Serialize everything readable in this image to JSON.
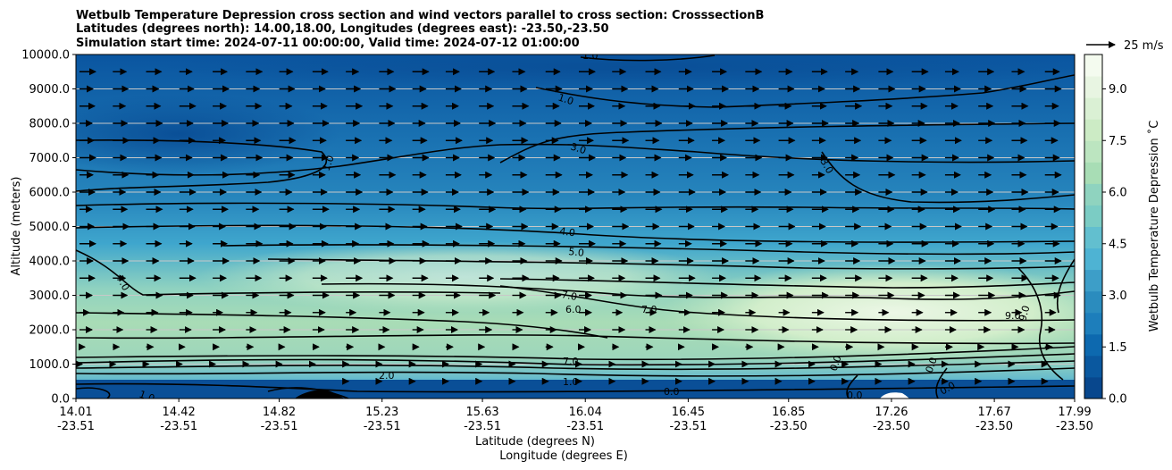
{
  "chart_data": {
    "type": "contour",
    "title_lines": [
      "Wetbulb Temperature Depression cross section and wind vectors parallel to cross section: CrosssectionB",
      "Latitudes (degrees north): 14.00,18.00, Longitudes (degrees east): -23.50,-23.50",
      "Simulation start time: 2024-07-11 00:00:00, Valid time: 2024-07-12 01:00:00"
    ],
    "xlabel_line1": "Latitude (degrees N)",
    "xlabel_line2": "Longitude (degrees E)",
    "ylabel": "Altitude (meters)",
    "x_ticks": [
      {
        "lat": "14.01",
        "lon": "-23.51",
        "v": 14.01
      },
      {
        "lat": "14.42",
        "lon": "-23.51",
        "v": 14.42
      },
      {
        "lat": "14.82",
        "lon": "-23.51",
        "v": 14.82
      },
      {
        "lat": "15.23",
        "lon": "-23.51",
        "v": 15.23
      },
      {
        "lat": "15.63",
        "lon": "-23.51",
        "v": 15.63
      },
      {
        "lat": "16.04",
        "lon": "-23.51",
        "v": 16.04
      },
      {
        "lat": "16.45",
        "lon": "-23.51",
        "v": 16.45
      },
      {
        "lat": "16.85",
        "lon": "-23.50",
        "v": 16.85
      },
      {
        "lat": "17.26",
        "lon": "-23.50",
        "v": 17.26
      },
      {
        "lat": "17.67",
        "lon": "-23.50",
        "v": 17.67
      },
      {
        "lat": "17.99",
        "lon": "-23.50",
        "v": 17.99
      }
    ],
    "xlim": [
      14.01,
      17.99
    ],
    "ylim": [
      0,
      10000
    ],
    "y_ticks": [
      "0.0",
      "1000.0",
      "2000.0",
      "3000.0",
      "4000.0",
      "5000.0",
      "6000.0",
      "7000.0",
      "8000.0",
      "9000.0",
      "10000.0"
    ],
    "y_tick_values": [
      0,
      1000,
      2000,
      3000,
      4000,
      5000,
      6000,
      7000,
      8000,
      9000,
      10000
    ],
    "grid": "horizontal",
    "colorbar": {
      "label": "Wetbulb Temperature Depression ˚C",
      "ticks": [
        "0.0",
        "1.5",
        "3.0",
        "4.5",
        "6.0",
        "7.5",
        "9.0"
      ],
      "tick_values": [
        0,
        1.5,
        3,
        4.5,
        6,
        7.5,
        9
      ],
      "range": [
        0,
        10
      ],
      "colors": [
        "#08478d",
        "#0a589f",
        "#0d69af",
        "#1d7ebb",
        "#2b8cbe",
        "#3d9ec8",
        "#4eb3d3",
        "#62bfcf",
        "#7bccc4",
        "#8fd3bf",
        "#a8ddb5",
        "#bce5c0",
        "#ccebc5",
        "#daf0d4",
        "#e8f5e2",
        "#f4fbef"
      ]
    },
    "quiver_key": {
      "label": "25 m/s",
      "speed": 25
    },
    "contour_levels": [
      0,
      1,
      2,
      3,
      4,
      5,
      6,
      7,
      8,
      9
    ],
    "contour_labels": [
      "1.0",
      "1.0",
      "3.0",
      "1.0",
      "3.0",
      "4.0",
      "5.0",
      "7.0",
      "7.0",
      "6.0",
      "7.0",
      "9.0",
      "9.0",
      "7.0",
      "2.0",
      "1.0",
      "1.0",
      "0.0",
      "0.0",
      "0.0",
      "0.0",
      "0.0"
    ]
  }
}
